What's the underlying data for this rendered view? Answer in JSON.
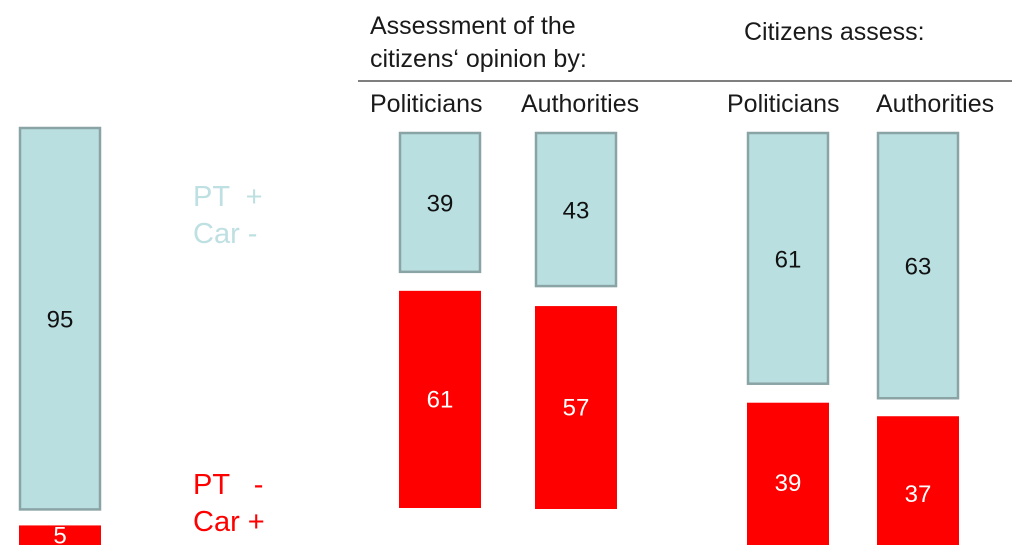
{
  "header": {
    "assessment_line1": "Assessment of the",
    "assessment_line2": "citizens‘ opinion by:",
    "citizens_assess": "Citizens assess:"
  },
  "legend": {
    "positive": {
      "line1": "PT  +",
      "line2": "Car -",
      "color": "#bfe0e2"
    },
    "negative": {
      "line1": "PT   -",
      "line2": "Car +",
      "color": "#ff0000"
    }
  },
  "colors": {
    "blue_fill": "#b9dfe1",
    "blue_stroke": "#8aa3a5",
    "red_fill": "#ff0000"
  },
  "chart_data": {
    "type": "bar",
    "stacked": true,
    "categories": [
      "",
      "Politicians",
      "Authorities",
      "Politicians",
      "Authorities"
    ],
    "series": [
      {
        "name": "PT + Car -",
        "values": [
          95,
          39,
          43,
          61,
          63
        ]
      },
      {
        "name": "PT - Car +",
        "values": [
          5,
          61,
          57,
          39,
          37
        ]
      }
    ],
    "group_labels": [
      "Assessment of the citizens‘ opinion by:",
      "Citizens assess:"
    ]
  }
}
